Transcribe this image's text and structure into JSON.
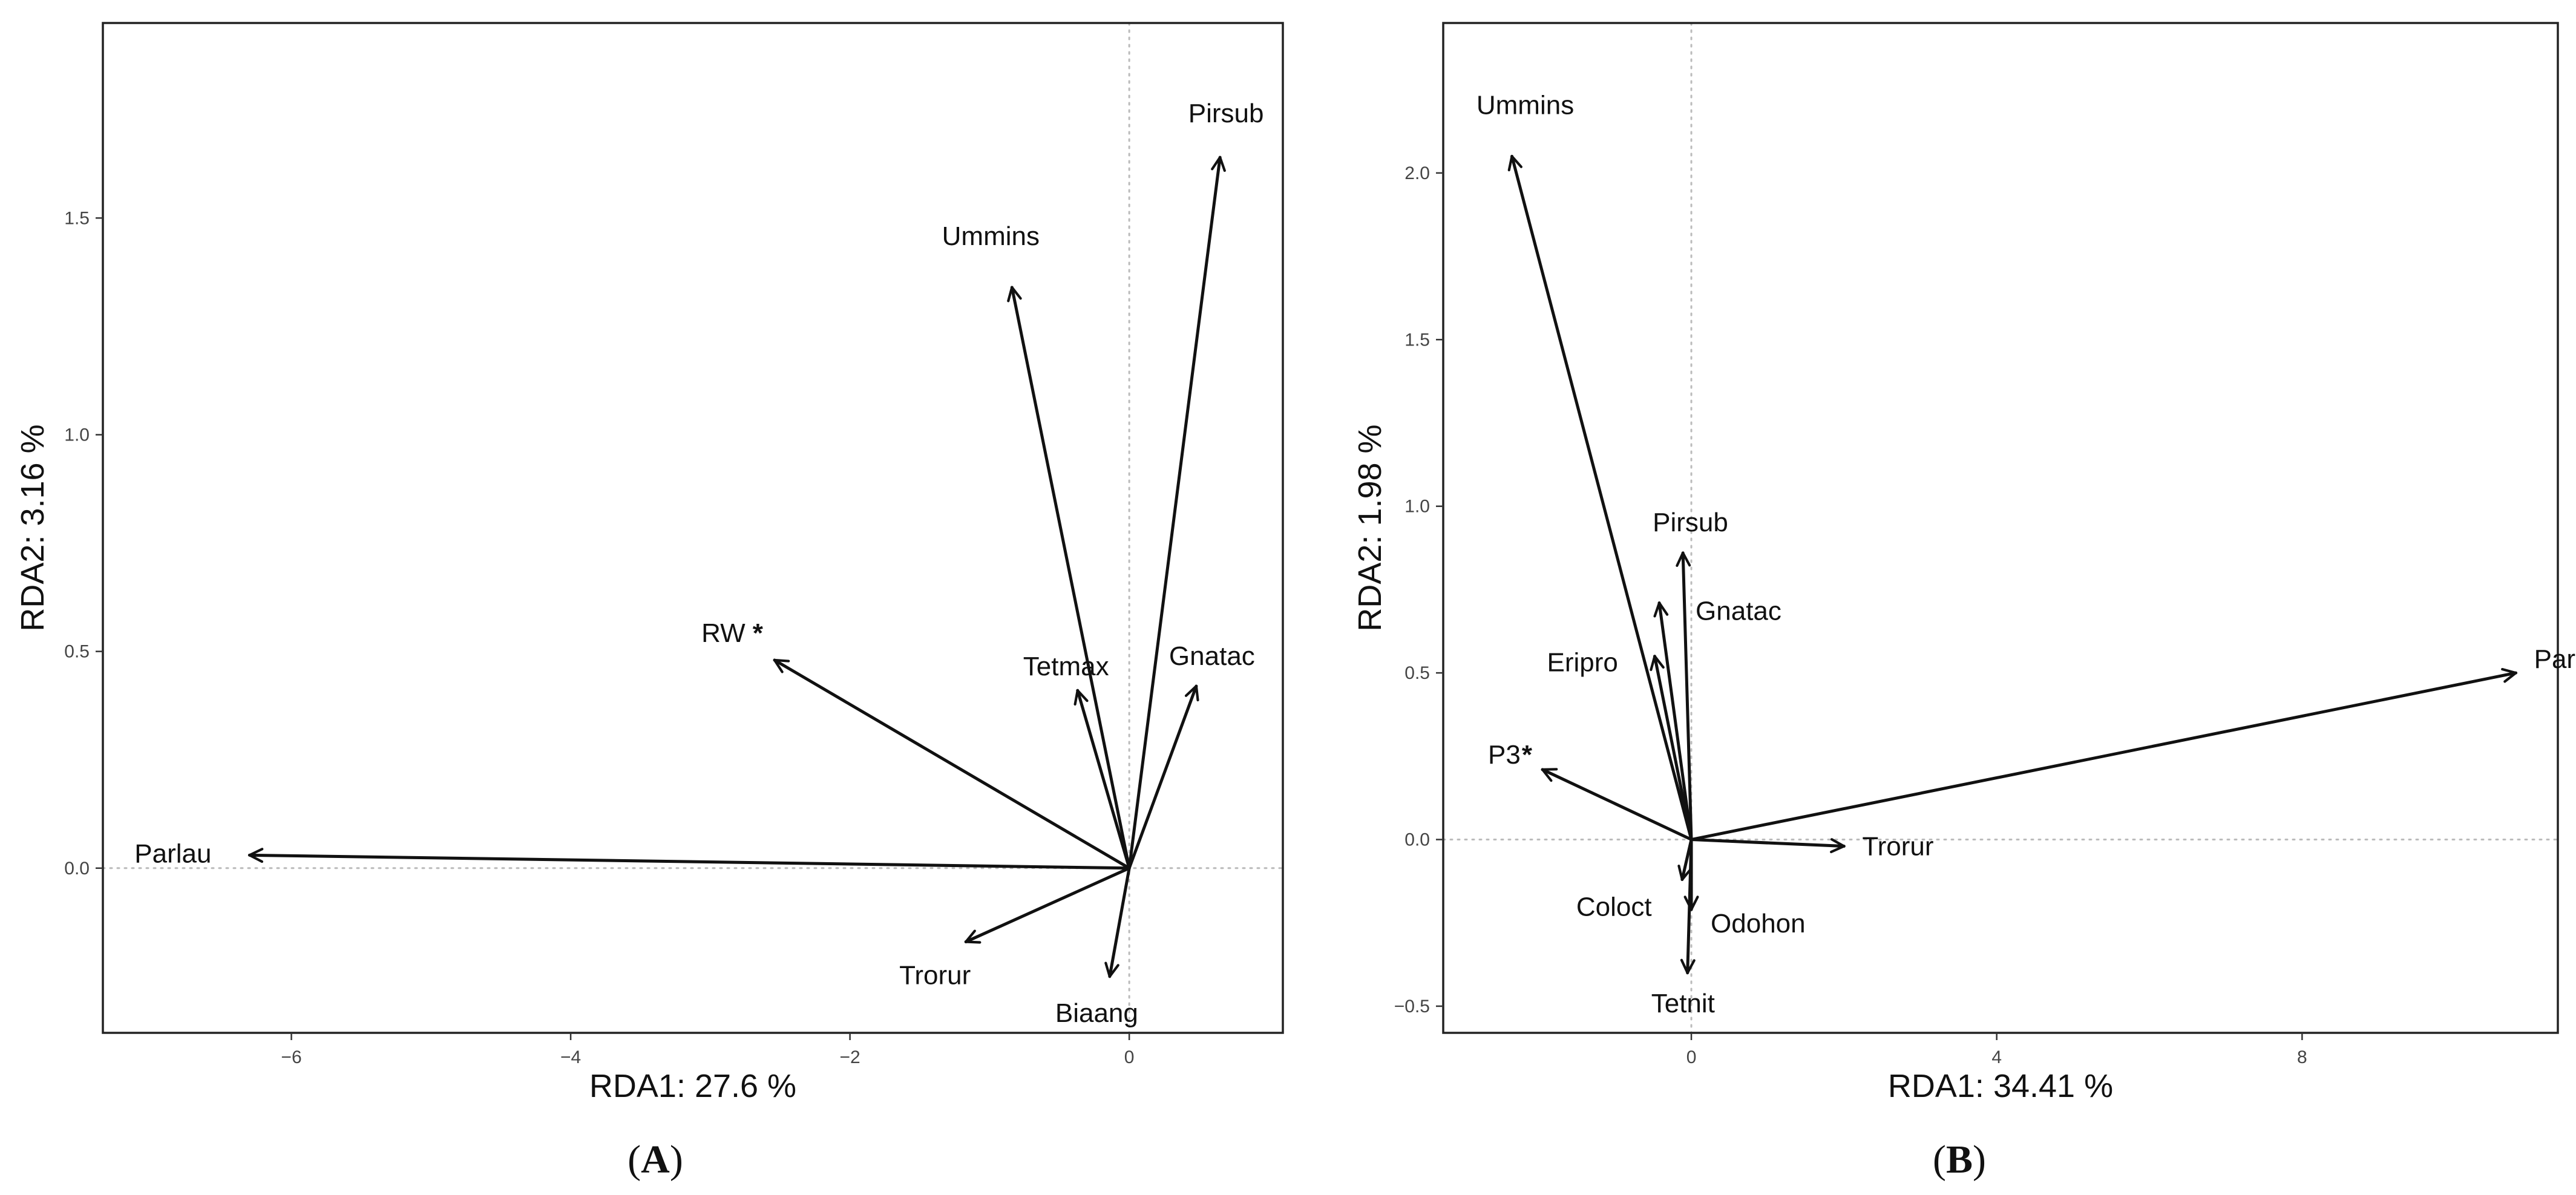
{
  "chart_data": [
    {
      "panel": "A",
      "type": "scatter",
      "xlabel": "RDA1: 27.6 %",
      "ylabel": "RDA2: 3.16 %",
      "xlim": [
        -7.35,
        1.1
      ],
      "ylim": [
        -0.38,
        1.95
      ],
      "xticks": [
        -6,
        -4,
        -2,
        0
      ],
      "yticks": [
        0.0,
        0.5,
        1.0,
        1.5
      ],
      "xtick_labels": [
        "−6",
        "−4",
        "−2",
        "0"
      ],
      "ytick_labels": [
        "0.0",
        "0.5",
        "1.0",
        "1.5"
      ],
      "reference_lines": {
        "x": 0,
        "y": 0,
        "style": "dotted"
      },
      "grid": false,
      "arrows": [
        {
          "label": "Pirsub",
          "x": 0.65,
          "y": 1.64
        },
        {
          "label": "Ummins",
          "x": -0.84,
          "y": 1.34
        },
        {
          "label": "RW",
          "marker": "*",
          "x": -2.54,
          "y": 0.48
        },
        {
          "label": "Tetmax",
          "x": -0.37,
          "y": 0.41
        },
        {
          "label": "Gnatac",
          "x": 0.48,
          "y": 0.42
        },
        {
          "label": "Parlau",
          "x": -6.3,
          "y": 0.03
        },
        {
          "label": "Trorur",
          "x": -1.17,
          "y": -0.17
        },
        {
          "label": "Biaang",
          "x": -0.14,
          "y": -0.25
        }
      ]
    },
    {
      "panel": "B",
      "type": "scatter",
      "xlabel": "RDA1: 34.41 %",
      "ylabel": "RDA2: 1.98 %",
      "xlim": [
        -3.25,
        11.35
      ],
      "ylim": [
        -0.58,
        2.45
      ],
      "xticks": [
        0,
        4,
        8
      ],
      "yticks": [
        -0.5,
        0.0,
        0.5,
        1.0,
        1.5,
        2.0
      ],
      "xtick_labels": [
        "0",
        "4",
        "8"
      ],
      "ytick_labels": [
        "−0.5",
        "0.0",
        "0.5",
        "1.0",
        "1.5",
        "2.0"
      ],
      "reference_lines": {
        "x": 0,
        "y": 0,
        "style": "dotted"
      },
      "grid": false,
      "arrows": [
        {
          "label": "Ummins",
          "x": -2.35,
          "y": 2.05
        },
        {
          "label": "Parlau",
          "x": 10.8,
          "y": 0.5
        },
        {
          "label": "Pirsub",
          "x": -0.11,
          "y": 0.86
        },
        {
          "label": "Gnatac",
          "x": -0.42,
          "y": 0.71
        },
        {
          "label": "Eripro",
          "x": -0.48,
          "y": 0.55
        },
        {
          "label": "P3",
          "marker": "*",
          "x": -1.95,
          "y": 0.21
        },
        {
          "label": "Trorur",
          "x": 2.0,
          "y": -0.02
        },
        {
          "label": "Coloct",
          "x": -0.12,
          "y": -0.12
        },
        {
          "label": "Odohon",
          "x": 0.0,
          "y": -0.21
        },
        {
          "label": "Tetnit",
          "x": -0.05,
          "y": -0.4
        }
      ]
    }
  ],
  "panel_labels": [
    "A",
    "B"
  ]
}
